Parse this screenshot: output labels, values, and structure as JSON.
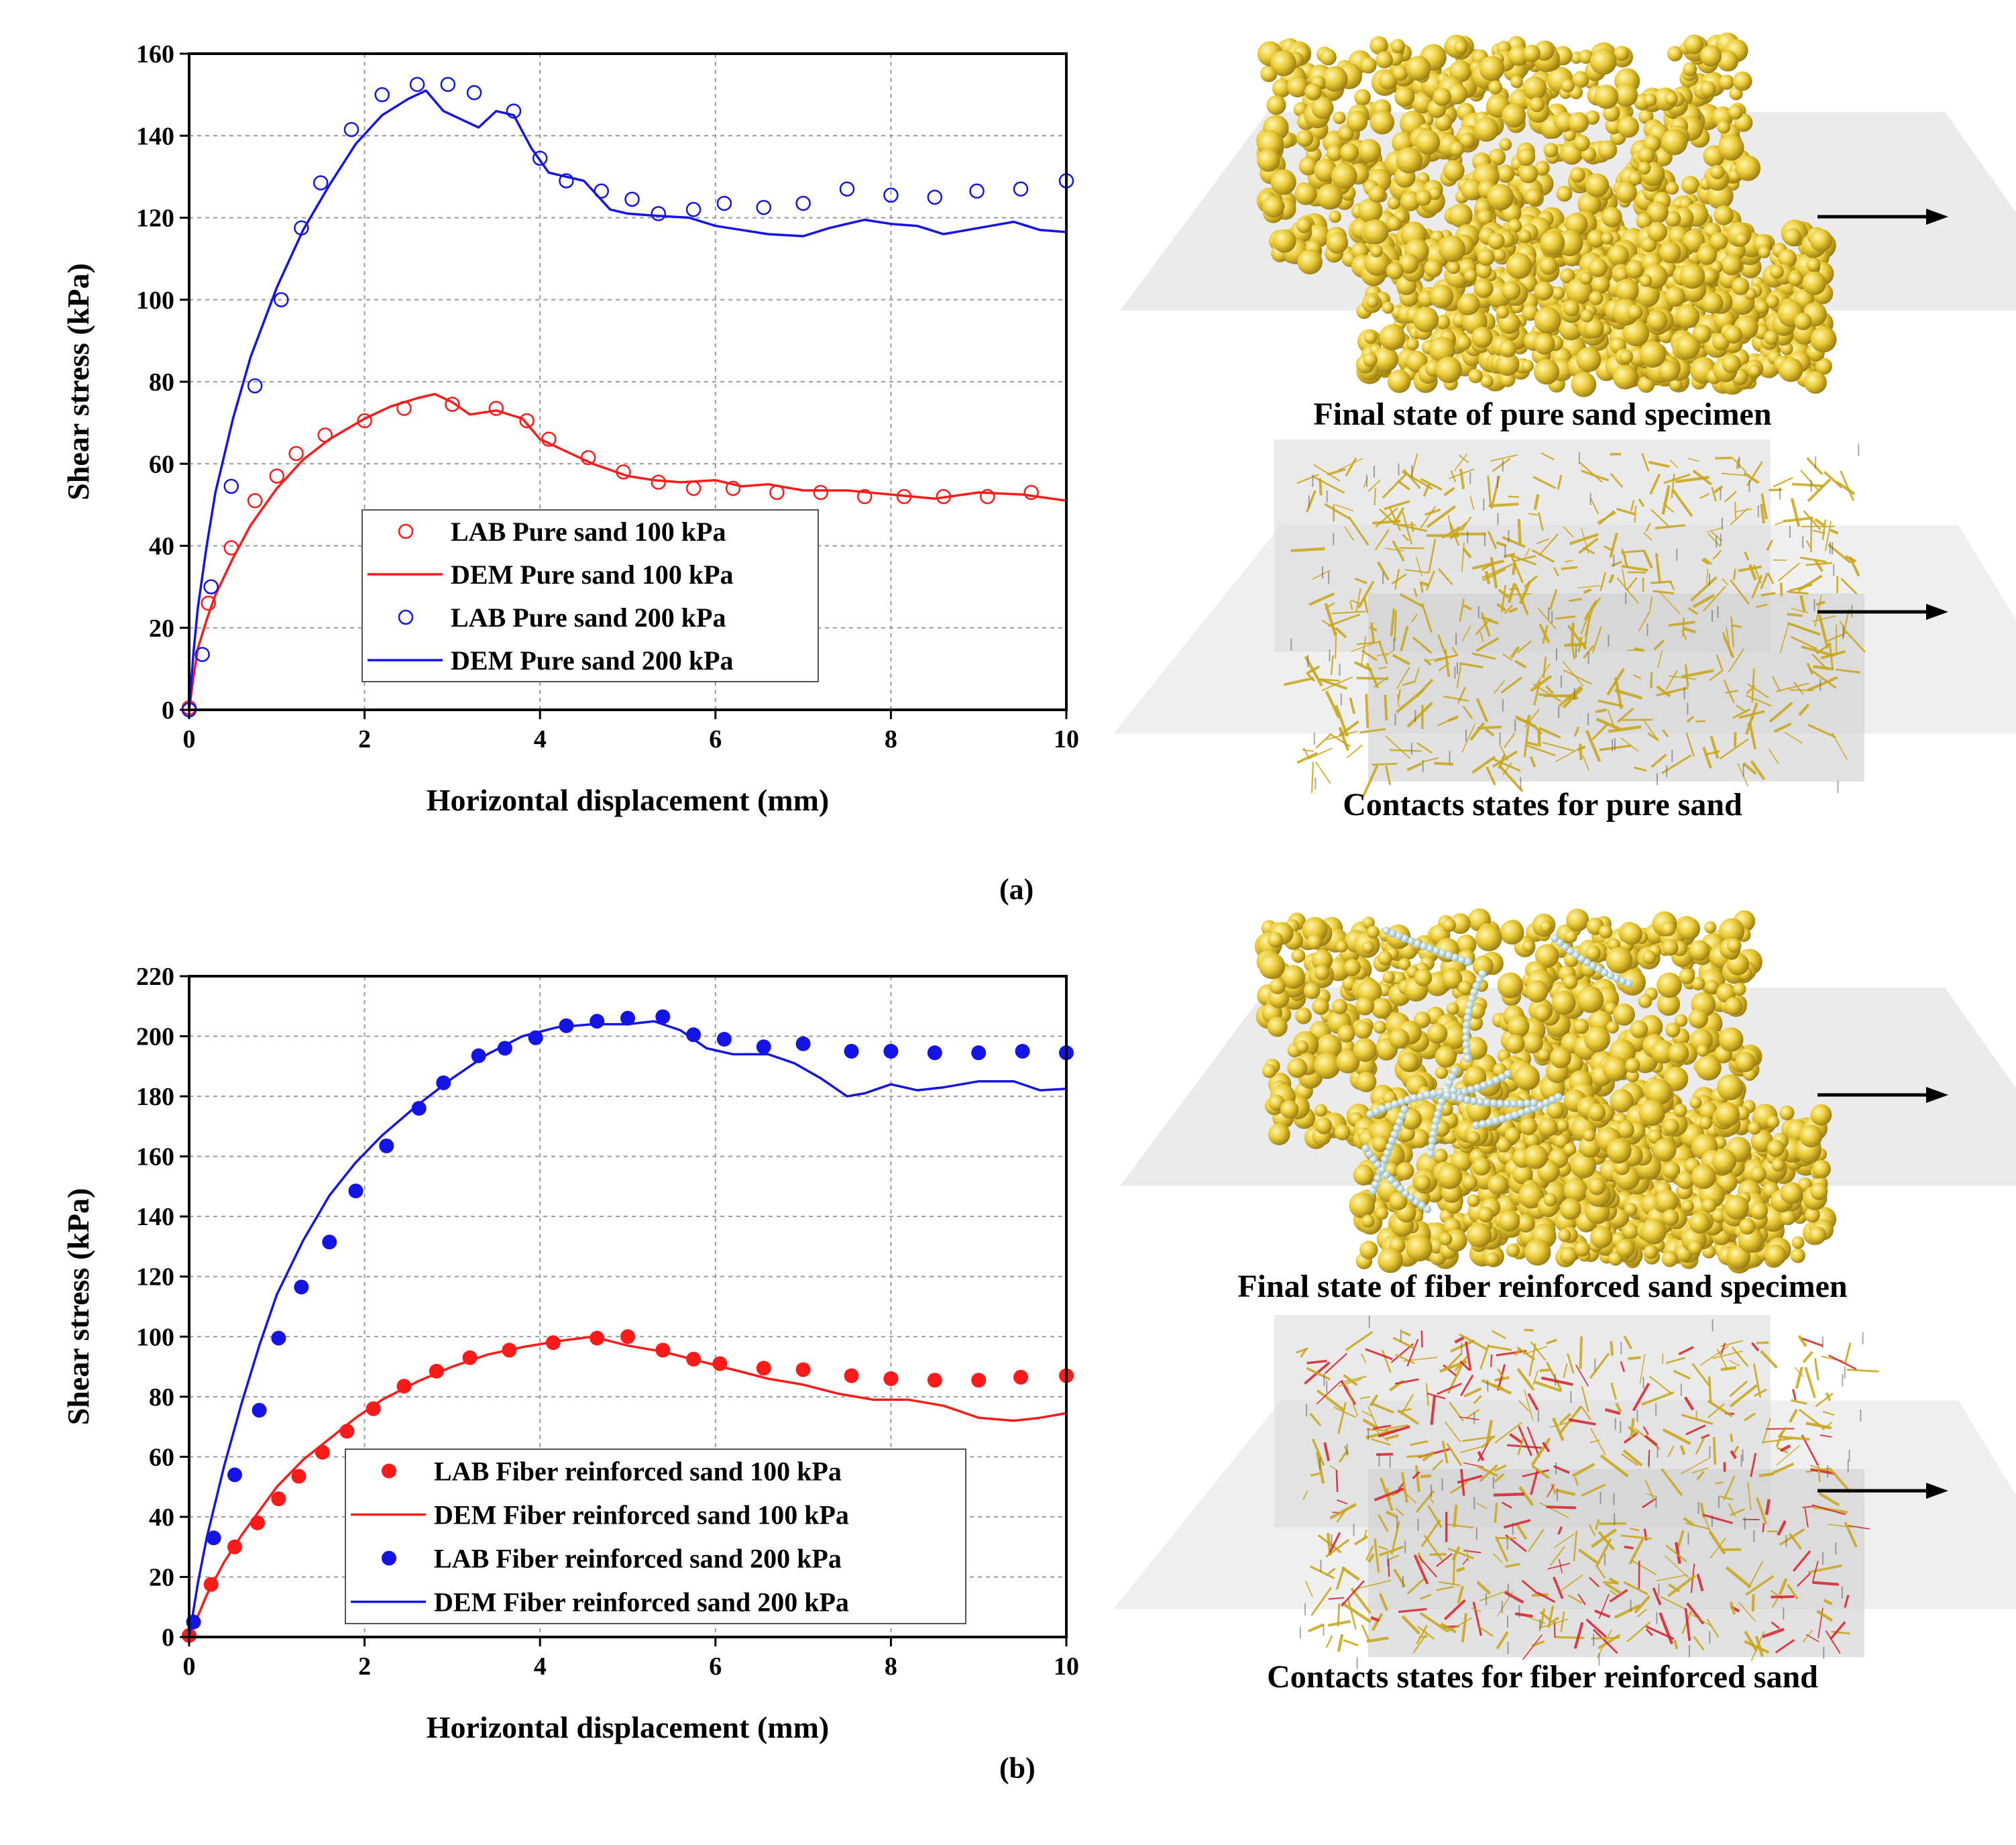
{
  "figure": {
    "panel_a_label": "(a)",
    "panel_b_label": "(b)",
    "images": [
      {
        "name": "pure-sand-final-state",
        "caption": "Final state of pure sand specimen",
        "style": "spheres",
        "fibers": false
      },
      {
        "name": "pure-sand-contacts",
        "caption": "Contacts states for pure sand",
        "style": "contacts",
        "fibers": false
      },
      {
        "name": "fiber-sand-final-state",
        "caption": "Final state of fiber reinforced sand specimen",
        "style": "spheres",
        "fibers": true
      },
      {
        "name": "fiber-sand-contacts",
        "caption": "Contacts states for fiber reinforced sand",
        "style": "contacts",
        "fibers": true
      }
    ],
    "colors": {
      "red": "#ff1a1a",
      "blue": "#1414e6",
      "sphere": "#e8c531",
      "contact_red": "#d8202a",
      "box": "#c8c8c8"
    }
  },
  "chart_data": [
    {
      "type": "line",
      "xlabel": "Horizontal displacement (mm)",
      "ylabel": "Shear stress (kPa)",
      "xlim": [
        0,
        10
      ],
      "ylim": [
        0,
        160
      ],
      "xticks": [
        0,
        2,
        4,
        6,
        8,
        10
      ],
      "yticks": [
        0,
        20,
        40,
        60,
        80,
        100,
        120,
        140,
        160
      ],
      "grid": true,
      "legend_position": "lower-middle",
      "series": [
        {
          "name": "LAB Pure sand 100 kPa",
          "kind": "scatter",
          "marker": "open-circle",
          "color": "#ff1a1a",
          "x": [
            0,
            0.22,
            0.48,
            0.75,
            1.0,
            1.22,
            1.55,
            2.0,
            2.45,
            3.0,
            3.5,
            3.85,
            4.1,
            4.55,
            4.95,
            5.35,
            5.75,
            6.2,
            6.7,
            7.2,
            7.7,
            8.15,
            8.6,
            9.1,
            9.6
          ],
          "y": [
            0.5,
            26,
            39.5,
            51,
            57,
            62.5,
            67,
            70.5,
            73.5,
            74.5,
            73.5,
            70.5,
            66,
            61.5,
            58,
            55.5,
            54,
            54,
            53,
            53,
            52,
            52,
            52,
            52,
            53
          ]
        },
        {
          "name": "DEM Pure sand 100 kPa",
          "kind": "line",
          "color": "#ff1a1a",
          "x": [
            0,
            0.05,
            0.1,
            0.2,
            0.3,
            0.5,
            0.7,
            1.0,
            1.3,
            1.6,
            2.0,
            2.3,
            2.6,
            2.8,
            3.0,
            3.2,
            3.5,
            3.8,
            4.0,
            4.3,
            4.6,
            5.0,
            5.3,
            5.6,
            6.0,
            6.3,
            6.6,
            7.0,
            7.5,
            8.0,
            8.5,
            9.0,
            9.5,
            10.0
          ],
          "y": [
            0,
            8,
            15,
            22,
            28,
            37,
            45,
            54,
            61,
            66,
            71,
            74,
            76,
            77,
            75,
            72,
            73,
            71,
            66,
            63,
            60,
            57,
            56,
            55.5,
            56,
            54.5,
            55,
            53.5,
            53.5,
            52.5,
            51.5,
            53,
            52.5,
            51
          ]
        },
        {
          "name": "LAB Pure sand 200 kPa",
          "kind": "scatter",
          "marker": "open-circle",
          "color": "#1414e6",
          "x": [
            0,
            0.15,
            0.25,
            0.48,
            0.75,
            1.05,
            1.28,
            1.5,
            1.85,
            2.2,
            2.6,
            2.95,
            3.25,
            3.7,
            4.0,
            4.3,
            4.7,
            5.05,
            5.35,
            5.75,
            6.1,
            6.55,
            7.0,
            7.5,
            8.0,
            8.5,
            8.98,
            9.48,
            10.0
          ],
          "y": [
            0,
            13.5,
            30,
            54.5,
            79,
            100,
            117.5,
            128.5,
            141.5,
            150,
            152.5,
            152.5,
            150.5,
            146,
            134.5,
            129,
            126.5,
            124.5,
            121,
            122,
            123.5,
            122.5,
            123.5,
            127,
            125.5,
            125,
            126.5,
            127,
            129
          ]
        },
        {
          "name": "DEM Pure sand 200 kPa",
          "kind": "line",
          "color": "#1414e6",
          "x": [
            0,
            0.05,
            0.1,
            0.2,
            0.3,
            0.5,
            0.7,
            1.0,
            1.3,
            1.6,
            1.9,
            2.2,
            2.5,
            2.7,
            2.9,
            3.1,
            3.3,
            3.5,
            3.7,
            3.9,
            4.1,
            4.3,
            4.5,
            4.8,
            5.0,
            5.3,
            5.7,
            6.0,
            6.3,
            6.6,
            7.0,
            7.3,
            7.7,
            8.0,
            8.3,
            8.6,
            9.0,
            9.4,
            9.7,
            10.0
          ],
          "y": [
            0,
            14,
            25,
            40,
            53,
            71,
            86,
            103,
            117,
            128,
            138,
            145,
            149,
            151,
            146,
            144,
            142,
            146,
            145,
            137,
            131,
            130,
            129,
            122,
            121,
            120.5,
            120,
            118,
            117,
            116,
            115.5,
            117.5,
            119.5,
            118.5,
            118,
            116,
            117.5,
            119,
            117,
            116.5
          ]
        }
      ]
    },
    {
      "type": "line",
      "xlabel": "Horizontal displacement (mm)",
      "ylabel": "Shear stress (kPa)",
      "xlim": [
        0,
        10
      ],
      "ylim": [
        0,
        220
      ],
      "xticks": [
        0,
        2,
        4,
        6,
        8,
        10
      ],
      "yticks": [
        0,
        20,
        40,
        60,
        80,
        100,
        120,
        140,
        160,
        180,
        200,
        220
      ],
      "grid": true,
      "legend_position": "lower-middle",
      "series": [
        {
          "name": "LAB Fiber reinforced sand 100 kPa",
          "kind": "scatter",
          "marker": "filled-circle",
          "color": "#ff1a1a",
          "x": [
            0,
            0.25,
            0.52,
            0.78,
            1.02,
            1.25,
            1.52,
            1.8,
            2.1,
            2.45,
            2.82,
            3.2,
            3.65,
            4.15,
            4.65,
            5.0,
            5.4,
            5.75,
            6.05,
            6.55,
            7.0,
            7.55,
            8.0,
            8.5,
            9.0,
            9.48,
            10.0
          ],
          "y": [
            0.5,
            17.5,
            30,
            38,
            46,
            53.5,
            61.5,
            68.5,
            76,
            83.5,
            88.5,
            93,
            95.5,
            98,
            99.5,
            100,
            95.5,
            92.5,
            91,
            89.5,
            89,
            87,
            86,
            85.5,
            85.5,
            86.5,
            87
          ]
        },
        {
          "name": "DEM Fiber reinforced sand 100 kPa",
          "kind": "line",
          "color": "#ff1a1a",
          "x": [
            0,
            0.1,
            0.2,
            0.4,
            0.6,
            0.8,
            1.0,
            1.3,
            1.6,
            1.9,
            2.2,
            2.6,
            3.0,
            3.4,
            3.8,
            4.2,
            4.6,
            5.0,
            5.4,
            5.8,
            6.2,
            6.6,
            7.0,
            7.4,
            7.8,
            8.2,
            8.6,
            9.0,
            9.4,
            9.7,
            10.0
          ],
          "y": [
            0,
            7,
            14,
            25,
            34,
            42,
            50,
            59,
            66,
            73,
            79,
            85,
            90,
            94,
            96.5,
            98.5,
            100,
            97,
            95,
            92,
            89,
            86,
            84,
            81,
            79,
            79,
            77,
            73,
            72,
            73,
            74.5
          ]
        },
        {
          "name": "LAB Fiber reinforced sand 200 kPa",
          "kind": "scatter",
          "marker": "filled-circle",
          "color": "#1414e6",
          "x": [
            0.05,
            0.28,
            0.52,
            0.8,
            1.02,
            1.28,
            1.6,
            1.9,
            2.25,
            2.62,
            2.9,
            3.3,
            3.6,
            3.95,
            4.3,
            4.65,
            5.0,
            5.4,
            5.75,
            6.1,
            6.55,
            7.0,
            7.55,
            8.0,
            8.5,
            9.0,
            9.5,
            10.0
          ],
          "y": [
            5,
            33,
            54,
            75.5,
            99.5,
            116.5,
            131.5,
            148.5,
            163.5,
            176,
            184.5,
            193.5,
            196,
            199.5,
            203.5,
            205,
            206,
            206.5,
            200.5,
            199,
            196.5,
            197.5,
            195,
            195,
            194.5,
            194.5,
            195,
            194.5
          ]
        },
        {
          "name": "DEM Fiber reinforced sand 200 kPa",
          "kind": "line",
          "color": "#1414e6",
          "x": [
            0,
            0.1,
            0.2,
            0.4,
            0.6,
            0.8,
            1.0,
            1.3,
            1.6,
            1.9,
            2.2,
            2.6,
            3.0,
            3.4,
            3.8,
            4.2,
            4.6,
            5.0,
            5.3,
            5.6,
            5.9,
            6.2,
            6.6,
            6.9,
            7.2,
            7.5,
            7.7,
            8.0,
            8.3,
            8.6,
            9.0,
            9.4,
            9.7,
            10.0
          ],
          "y": [
            0,
            18,
            33,
            57,
            78,
            97,
            114,
            132,
            147,
            158,
            167,
            177,
            186,
            194,
            200,
            203,
            204,
            204,
            205,
            202,
            196,
            194,
            194,
            191,
            186,
            180,
            181,
            184,
            182,
            183,
            185,
            185,
            182,
            182.5
          ]
        }
      ]
    }
  ]
}
